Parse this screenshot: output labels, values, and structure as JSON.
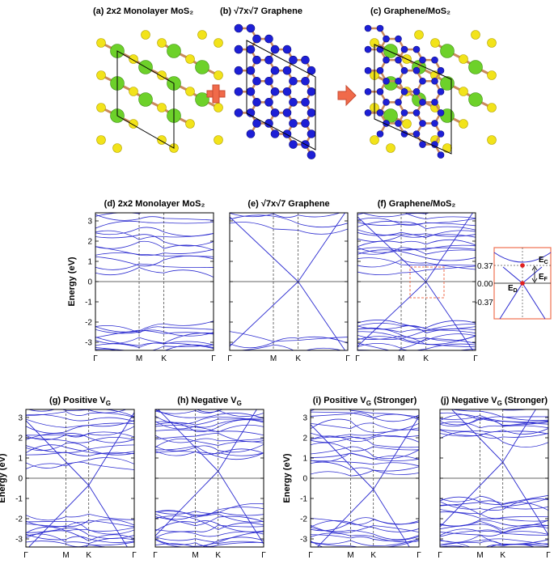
{
  "structures": {
    "mos2": {
      "title": "(a) 2x2 Monolayer MoS₂"
    },
    "graphene": {
      "title": "(b) √7x√7 Graphene"
    },
    "hetero": {
      "title": "(c) Graphene/MoS₂"
    }
  },
  "colors": {
    "mo_atom": "#6dd12a",
    "s_atom": "#f2e31a",
    "c_atom": "#1d1fd6",
    "bond": "#c98a5c",
    "arrow": "#f06a4a",
    "band": "#2b2bd0",
    "inset_frame": "#f07050"
  },
  "top_panels": [
    {
      "title": "(d) 2x2 Monolayer MoS₂",
      "show_ylabel": true
    },
    {
      "title": "(e) √7x√7 Graphene",
      "show_ylabel": false
    },
    {
      "title": "(f) Graphene/MoS₂",
      "show_ylabel": false
    }
  ],
  "bottom_panels": [
    {
      "title": "(g) Positive V",
      "sub": "G",
      "suffix": "",
      "show_ylabel": true
    },
    {
      "title": "(h) Negative V",
      "sub": "G",
      "suffix": "",
      "show_ylabel": false
    },
    {
      "title": "(i) Positive V",
      "sub": "G",
      "suffix": " (Stronger)",
      "show_ylabel": true
    },
    {
      "title": "(j) Negative V",
      "sub": "G",
      "suffix": " (Stronger)",
      "show_ylabel": false
    }
  ],
  "band_axes": {
    "ylabel": "Energy (eV)",
    "yticks": [
      "-3",
      "-2",
      "-1",
      "0",
      "1",
      "2",
      "3"
    ],
    "xticks": [
      "Γ",
      "M",
      "K",
      "Γ"
    ],
    "ylim": [
      -3.4,
      3.4
    ]
  },
  "inset": {
    "yticks": [
      "0.37",
      "0.00",
      "-0.37"
    ],
    "labels": {
      "ec": "E",
      "ec_sub": "C",
      "ed": "E",
      "ed_sub": "D",
      "ef": "E",
      "ef_sub": "F"
    }
  }
}
